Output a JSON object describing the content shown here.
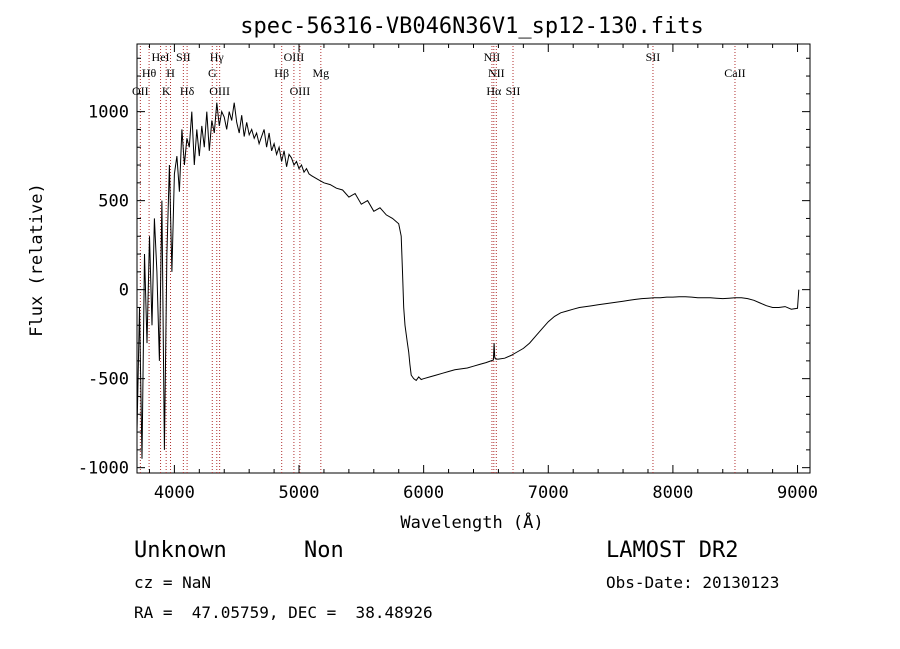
{
  "chart_data": {
    "type": "line",
    "title": "spec-56316-VB046N36V1_sp12-130.fits",
    "xlabel": "Wavelength (Å)",
    "ylabel": "Flux (relative)",
    "xlim": [
      3700,
      9100
    ],
    "ylim": [
      -1030,
      1380
    ],
    "xticks": [
      4000,
      5000,
      6000,
      7000,
      8000,
      9000
    ],
    "yticks": [
      -1000,
      -500,
      0,
      500,
      1000
    ],
    "grid": false,
    "line_color": "#000000",
    "marker_color": "#b03030",
    "series": [
      {
        "x": [
          3700,
          3720,
          3740,
          3760,
          3780,
          3800,
          3820,
          3840,
          3860,
          3880,
          3900,
          3920,
          3940,
          3960,
          3980,
          4000,
          4020,
          4040,
          4060,
          4080,
          4100,
          4120,
          4140,
          4160,
          4180,
          4200,
          4220,
          4240,
          4260,
          4280,
          4300,
          4320,
          4340,
          4360,
          4380,
          4400,
          4420,
          4440,
          4460,
          4480,
          4500,
          4520,
          4540,
          4560,
          4580,
          4600,
          4620,
          4640,
          4660,
          4680,
          4700,
          4720,
          4740,
          4760,
          4780,
          4800,
          4820,
          4840,
          4860,
          4880,
          4900,
          4920,
          4940,
          4960,
          4980,
          5000,
          5020,
          5040,
          5060,
          5080,
          5100,
          5150,
          5200,
          5250,
          5300,
          5350,
          5400,
          5450,
          5500,
          5550,
          5600,
          5650,
          5700,
          5750,
          5800,
          5820,
          5830,
          5840,
          5850,
          5860,
          5870,
          5880,
          5890,
          5900,
          5920,
          5940,
          5960,
          5980,
          6000,
          6050,
          6100,
          6150,
          6200,
          6250,
          6300,
          6350,
          6400,
          6450,
          6500,
          6540,
          6560,
          6565,
          6570,
          6580,
          6600,
          6650,
          6700,
          6750,
          6800,
          6850,
          6900,
          6950,
          7000,
          7050,
          7100,
          7150,
          7200,
          7250,
          7300,
          7350,
          7400,
          7450,
          7500,
          7550,
          7600,
          7650,
          7700,
          7750,
          7800,
          7850,
          7900,
          7950,
          8000,
          8050,
          8100,
          8150,
          8200,
          8250,
          8300,
          8350,
          8400,
          8450,
          8500,
          8550,
          8600,
          8650,
          8700,
          8750,
          8800,
          8850,
          8900,
          8950,
          9000,
          9010
        ],
        "y": [
          -800,
          -100,
          -950,
          200,
          -300,
          300,
          -200,
          400,
          100,
          -400,
          500,
          -900,
          200,
          700,
          100,
          650,
          750,
          550,
          900,
          700,
          850,
          800,
          1000,
          700,
          900,
          750,
          920,
          800,
          1000,
          780,
          950,
          880,
          1050,
          920,
          1000,
          970,
          900,
          1000,
          950,
          1050,
          940,
          880,
          980,
          860,
          940,
          870,
          900,
          850,
          880,
          820,
          860,
          900,
          800,
          880,
          780,
          820,
          760,
          800,
          720,
          780,
          690,
          760,
          740,
          700,
          720,
          680,
          700,
          660,
          680,
          650,
          640,
          620,
          600,
          590,
          570,
          560,
          520,
          540,
          480,
          500,
          440,
          460,
          420,
          400,
          370,
          300,
          100,
          -100,
          -200,
          -250,
          -300,
          -350,
          -420,
          -480,
          -500,
          -510,
          -490,
          -505,
          -500,
          -490,
          -480,
          -470,
          -460,
          -450,
          -445,
          -440,
          -430,
          -420,
          -410,
          -400,
          -395,
          -300,
          -380,
          -390,
          -390,
          -385,
          -370,
          -350,
          -330,
          -300,
          -260,
          -220,
          -180,
          -150,
          -130,
          -120,
          -110,
          -100,
          -95,
          -90,
          -85,
          -80,
          -75,
          -70,
          -65,
          -60,
          -55,
          -50,
          -48,
          -45,
          -45,
          -42,
          -42,
          -40,
          -40,
          -42,
          -45,
          -45,
          -45,
          -48,
          -50,
          -48,
          -45,
          -45,
          -50,
          -60,
          -75,
          -90,
          -100,
          -100,
          -95,
          -110,
          -105,
          0
        ]
      }
    ],
    "line_markers": [
      {
        "name": "OII",
        "x": 3727,
        "row": 3
      },
      {
        "name": "Hθ",
        "x": 3797,
        "row": 2
      },
      {
        "name": "HeI",
        "x": 3889,
        "row": 1
      },
      {
        "name": "K",
        "x": 3934,
        "row": 3
      },
      {
        "name": "H",
        "x": 3969,
        "row": 2
      },
      {
        "name": "SII",
        "x": 4072,
        "row": 1
      },
      {
        "name": "Hδ",
        "x": 4102,
        "row": 3
      },
      {
        "name": "Hγ",
        "x": 4340,
        "row": 1
      },
      {
        "name": "G",
        "x": 4304,
        "row": 2
      },
      {
        "name": "OIII",
        "x": 4363,
        "row": 3
      },
      {
        "name": "Hβ",
        "x": 4861,
        "row": 2
      },
      {
        "name": "OIII",
        "x": 4959,
        "row": 1
      },
      {
        "name": "OIII",
        "x": 5007,
        "row": 3
      },
      {
        "name": "Mg",
        "x": 5175,
        "row": 2
      },
      {
        "name": "NII",
        "x": 6548,
        "row": 1
      },
      {
        "name": "NII",
        "x": 6583,
        "row": 2
      },
      {
        "name": "Hα",
        "x": 6563,
        "row": 3
      },
      {
        "name": "SII",
        "x": 6717,
        "row": 3
      },
      {
        "name": "SII",
        "x": 7840,
        "row": 1
      },
      {
        "name": "CaII",
        "x": 8498,
        "row": 2
      }
    ]
  },
  "info": {
    "class": "Unknown",
    "subclass": "Non",
    "survey": "LAMOST DR2",
    "cz": "cz = NaN",
    "obs_date": "Obs-Date: 20130123",
    "coords": "RA =  47.05759, DEC =  38.48926"
  }
}
